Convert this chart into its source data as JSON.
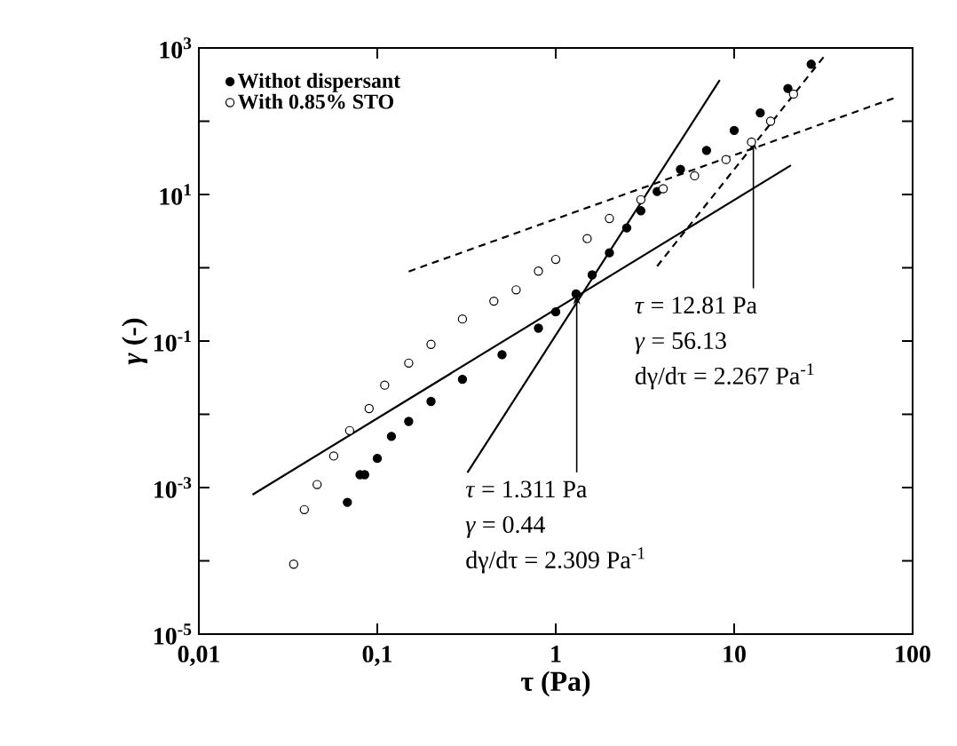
{
  "chart_data": {
    "type": "scatter",
    "log": "xy",
    "xlabel": "τ (Pa)",
    "ylabel": "*γ* (-)",
    "xlim": [
      0.01,
      100
    ],
    "ylim": [
      1e-05,
      1000
    ],
    "xticks": [
      {
        "value": 0.01,
        "label": "0,01"
      },
      {
        "value": 0.1,
        "label": "0,1"
      },
      1,
      10,
      100
    ],
    "yticks": [
      {
        "value": 1e-05,
        "label": "10$^{-5}$"
      },
      {
        "value": 0.0001,
        "label": null
      },
      {
        "value": 0.001,
        "label": "10$^{-3}$"
      },
      {
        "value": 0.01,
        "label": null
      },
      {
        "value": 0.1,
        "label": "10$^{-1}$"
      },
      {
        "value": 1,
        "label": null
      },
      {
        "value": 10,
        "label": "10$^{1}$"
      },
      {
        "value": 100,
        "label": null
      },
      {
        "value": 1000,
        "label": "10$^{3}$"
      }
    ],
    "grid": false,
    "legend": "top left",
    "series": [
      {
        "name": "Withot dispersant",
        "color": "#000000",
        "marker": "circle",
        "x": [
          0.068,
          0.08,
          0.085,
          0.1,
          0.12,
          0.15,
          0.2,
          0.3,
          0.5,
          0.8,
          1.0,
          1.3,
          1.6,
          2,
          2.5,
          3,
          3.7,
          5,
          7,
          10,
          14,
          20,
          27
        ],
        "values": [
          0.00063,
          0.0015,
          0.0015,
          0.0025,
          0.005,
          0.008,
          0.015,
          0.03,
          0.065,
          0.15,
          0.25,
          0.44,
          0.8,
          1.6,
          3.5,
          6,
          11,
          22,
          40,
          75,
          130,
          280,
          600
        ]
      },
      {
        "name": "With 0.85% STO",
        "color": "#000000",
        "marker": "open circle",
        "x": [
          0.034,
          0.039,
          0.046,
          0.057,
          0.07,
          0.09,
          0.11,
          0.15,
          0.2,
          0.3,
          0.45,
          0.6,
          0.8,
          1,
          1.5,
          2,
          3,
          4,
          6,
          9,
          12.5,
          16,
          21.5
        ],
        "values": [
          9e-05,
          0.0005,
          0.0011,
          0.0027,
          0.006,
          0.012,
          0.025,
          0.05,
          0.09,
          0.2,
          0.35,
          0.5,
          0.9,
          1.3,
          2.5,
          4.7,
          8.5,
          12,
          18,
          30,
          52,
          100,
          235
        ]
      },
      {
        "type": "line",
        "color": "#000000",
        "line_style": "solid",
        "marker": "none",
        "x": [
          0.02,
          20.8
        ],
        "values": [
          0.0008,
          25
        ]
      },
      {
        "type": "line",
        "color": "#000000",
        "line_style": "solid",
        "marker": "none",
        "x": [
          0.32,
          8.3
        ],
        "values": [
          0.0016,
          365
        ]
      },
      {
        "type": "line",
        "color": "#000000",
        "line_style": "dashed",
        "marker": "none",
        "x": [
          0.15,
          80
        ],
        "values": [
          0.89,
          210
        ]
      },
      {
        "type": "line",
        "color": "#000000",
        "line_style": "dashed",
        "marker": "none",
        "x": [
          3.7,
          33
        ],
        "values": [
          1.05,
          850
        ]
      }
    ],
    "annotations": [
      {
        "text": "*τ* = 12.81 Pa",
        "x": 12.81,
        "y": 56.13
      },
      "*γ* = 56.13",
      "dγ/dτ = 2.267 Pa$^{-1}$",
      {
        "text": "*τ* = 1.311 Pa",
        "x": 1.311,
        "y": 0.44
      },
      "*γ* = 0.44",
      "dγ/dτ = 2.309 Pa$^{-1}$"
    ]
  }
}
